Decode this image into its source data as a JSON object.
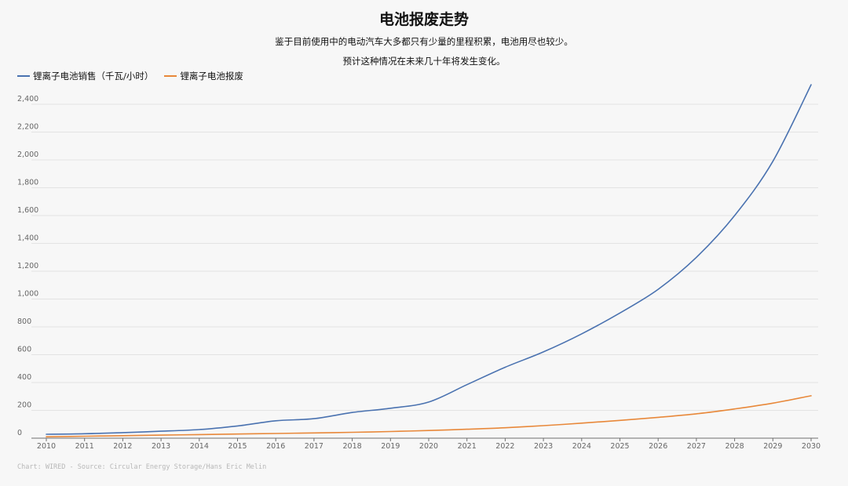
{
  "chart_data": {
    "type": "line",
    "title": "电池报废走势",
    "subtitle_lines": [
      "鉴于目前使用中的电动汽车大多都只有少量的里程积累，电池用尽也较少。",
      "预计这种情况在未来几十年将发生变化。"
    ],
    "x": [
      2010,
      2011,
      2012,
      2013,
      2014,
      2015,
      2016,
      2017,
      2018,
      2019,
      2020,
      2021,
      2022,
      2023,
      2024,
      2025,
      2026,
      2027,
      2028,
      2029,
      2030
    ],
    "series": [
      {
        "name": "锂离子电池销售（千瓦/小时）",
        "color": "#4a72b0",
        "values": [
          28,
          32,
          40,
          50,
          62,
          88,
          125,
          140,
          185,
          215,
          260,
          385,
          510,
          620,
          750,
          900,
          1070,
          1300,
          1600,
          1990,
          2540
        ]
      },
      {
        "name": "锂离子电池报废",
        "color": "#e8883a",
        "values": [
          10,
          14,
          18,
          22,
          26,
          30,
          34,
          38,
          42,
          48,
          55,
          64,
          75,
          90,
          108,
          128,
          150,
          175,
          210,
          252,
          305
        ]
      }
    ],
    "y_ticks": [
      "0",
      "200",
      "400",
      "600",
      "800",
      "1,000",
      "1,200",
      "1,400",
      "1,600",
      "1,800",
      "2,000",
      "2,200",
      "2,400"
    ],
    "ylim": [
      0,
      2400
    ],
    "grid": true,
    "legend_position": "top-left",
    "source": "Chart: WIRED - Source: Circular Energy Storage/Hans Eric Melin"
  }
}
